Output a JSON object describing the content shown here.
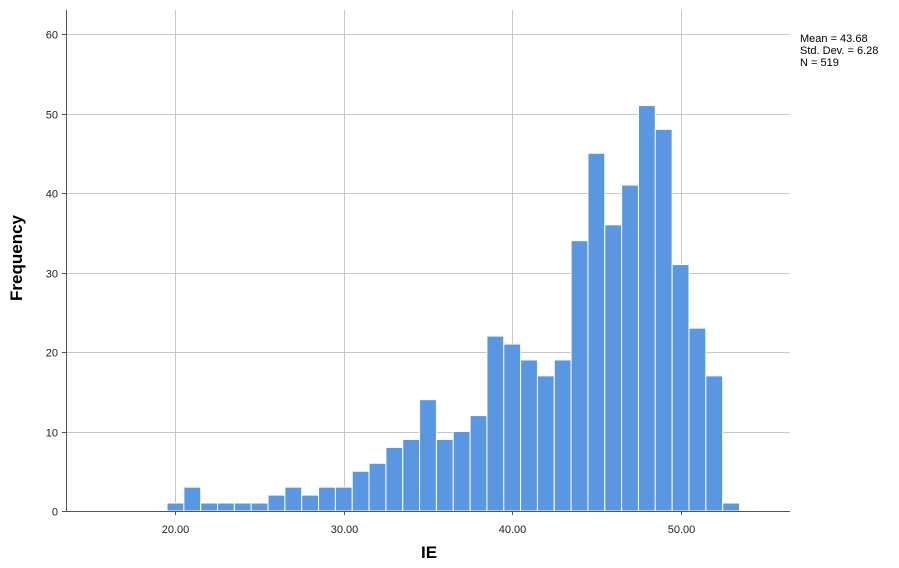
{
  "chart_data": {
    "type": "bar",
    "subtype": "histogram",
    "xlabel": "IE",
    "ylabel": "Frequency",
    "xlim": [
      13.5,
      56.5
    ],
    "ylim": [
      0,
      60
    ],
    "grid": "on",
    "x_ticks": [
      "20.00",
      "30.00",
      "40.00",
      "50.00"
    ],
    "x_tick_values": [
      20,
      30,
      40,
      50
    ],
    "y_ticks": [
      "0",
      "10",
      "20",
      "30",
      "40",
      "50",
      "60"
    ],
    "y_tick_values": [
      0,
      10,
      20,
      30,
      40,
      50,
      60
    ],
    "bin_width": 1,
    "bin_centers": [
      20,
      21,
      22,
      23,
      24,
      25,
      26,
      27,
      28,
      29,
      30,
      31,
      32,
      33,
      34,
      35,
      36,
      37,
      38,
      39,
      40,
      41,
      42,
      43,
      44,
      45,
      46,
      47,
      48,
      49,
      50,
      51,
      52,
      53
    ],
    "values": [
      1,
      3,
      1,
      1,
      1,
      1,
      2,
      3,
      2,
      3,
      3,
      5,
      6,
      8,
      9,
      14,
      9,
      10,
      12,
      22,
      21,
      19,
      17,
      19,
      34,
      45,
      36,
      41,
      51,
      48,
      31,
      23,
      17,
      1
    ],
    "bar_color": "#5a97e3",
    "bar_edge_color": "#ffffff",
    "stats": {
      "mean": "Mean = 43.68",
      "std_dev": "Std. Dev. = 6.28",
      "n": "N = 519"
    }
  }
}
